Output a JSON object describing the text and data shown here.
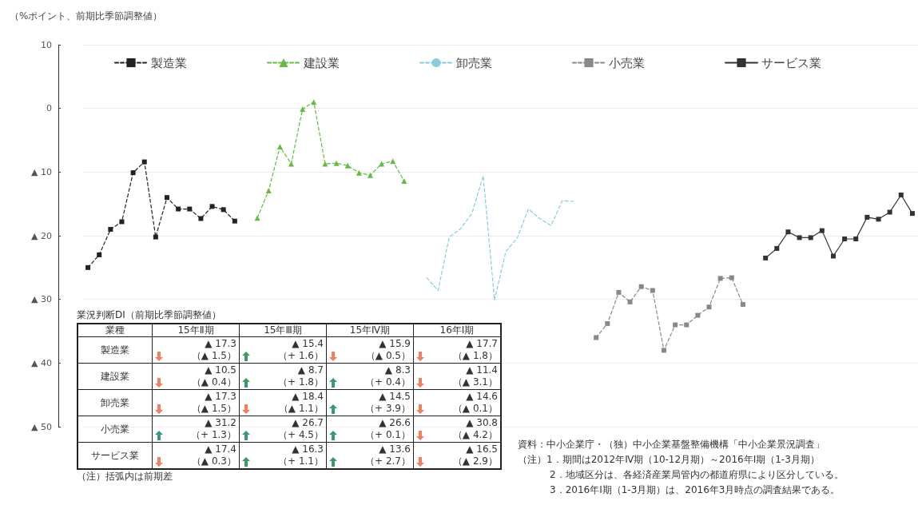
{
  "chart_data": [
    {
      "type": "line",
      "ylabel": "（%ポイント、前期比季節調整値）",
      "categories": [
        null,
        null,
        null,
        null,
        null,
        null,
        null,
        null,
        null,
        null,
        null,
        null,
        null,
        null,
        null,
        null,
        null,
        null,
        null,
        null,
        null,
        null,
        null,
        null,
        null,
        null,
        null,
        null,
        null,
        null,
        null,
        null,
        null,
        null,
        null,
        null,
        null,
        null,
        null,
        null,
        null,
        null,
        null,
        null,
        null,
        null,
        null,
        null,
        null,
        null,
        null,
        null,
        null,
        null,
        null,
        null,
        null,
        null,
        null,
        null,
        null,
        null,
        null,
        null,
        null,
        null,
        null,
        null,
        null,
        null,
        null,
        null,
        null,
        null
      ],
      "series": [
        {
          "name": "製造業",
          "color": "#222222",
          "marker": "square",
          "line_style": "dashed",
          "values": [
            -25.0,
            -23.0,
            -19.0,
            -17.8,
            -10.1,
            -8.4,
            -20.2,
            -14.0,
            -15.8,
            -15.8,
            -17.3,
            -15.4,
            -15.9,
            -17.7,
            null,
            null,
            null,
            null,
            null,
            null,
            null,
            null,
            null,
            null,
            null,
            null,
            null,
            null,
            null,
            null,
            null,
            null,
            null,
            null,
            null,
            null,
            null,
            null,
            null,
            null,
            null,
            null,
            null,
            null,
            null,
            null,
            null,
            null,
            null,
            null,
            null,
            null,
            null,
            null,
            null,
            null,
            null,
            null,
            null,
            null,
            null,
            null,
            null,
            null,
            null,
            null,
            null,
            null,
            null,
            null,
            null,
            null,
            null,
            null
          ]
        },
        {
          "name": "建設業",
          "color": "#66bb44",
          "marker": "triangle",
          "line_style": "dashed",
          "values": [
            null,
            null,
            null,
            null,
            null,
            null,
            null,
            null,
            null,
            null,
            null,
            null,
            null,
            null,
            null,
            -17.2,
            -12.9,
            -6.0,
            -8.7,
            -0.1,
            1.0,
            -8.7,
            -8.6,
            -9.0,
            -10.1,
            -10.5,
            -8.7,
            -8.3,
            -11.4,
            null,
            null,
            null,
            null,
            null,
            null,
            null,
            null,
            null,
            null,
            null,
            null,
            null,
            null,
            null,
            null,
            null,
            null,
            null,
            null,
            null,
            null,
            null,
            null,
            null,
            null,
            null,
            null,
            null,
            null,
            null,
            null,
            null,
            null,
            null,
            null,
            null,
            null,
            null,
            null,
            null,
            null,
            null,
            null,
            null
          ]
        },
        {
          "name": "卸売業",
          "color": "#88ccdd",
          "marker": "none",
          "line_style": "dashed",
          "values": [
            null,
            null,
            null,
            null,
            null,
            null,
            null,
            null,
            null,
            null,
            null,
            null,
            null,
            null,
            null,
            null,
            null,
            null,
            null,
            null,
            null,
            null,
            null,
            null,
            null,
            null,
            null,
            null,
            null,
            null,
            -26.6,
            -28.6,
            -20.2,
            -18.9,
            -16.5,
            -10.6,
            -30.1,
            -22.5,
            -20.4,
            -15.8,
            -17.3,
            -18.4,
            -14.5,
            -14.6,
            null,
            null,
            null,
            null,
            null,
            null,
            null,
            null,
            null,
            null,
            null,
            null,
            null,
            null,
            null,
            null,
            null,
            null,
            null,
            null,
            null,
            null,
            null,
            null,
            null,
            null,
            null,
            null,
            null,
            null
          ]
        },
        {
          "name": "小売業",
          "color": "#888888",
          "marker": "square",
          "line_style": "dashed",
          "values": [
            null,
            null,
            null,
            null,
            null,
            null,
            null,
            null,
            null,
            null,
            null,
            null,
            null,
            null,
            null,
            null,
            null,
            null,
            null,
            null,
            null,
            null,
            null,
            null,
            null,
            null,
            null,
            null,
            null,
            null,
            null,
            null,
            null,
            null,
            null,
            null,
            null,
            null,
            null,
            null,
            null,
            null,
            null,
            null,
            null,
            -36.0,
            -33.8,
            -28.9,
            -30.4,
            -28.0,
            -28.6,
            -38.0,
            -34.0,
            -34.0,
            -32.5,
            -31.2,
            -26.7,
            -26.6,
            -30.8,
            null,
            null,
            null,
            null,
            null,
            null,
            null,
            null,
            null,
            null,
            null,
            null,
            null,
            null,
            null
          ]
        },
        {
          "name": "サービス業",
          "color": "#333333",
          "marker": "square",
          "line_style": "solid",
          "values": [
            null,
            null,
            null,
            null,
            null,
            null,
            null,
            null,
            null,
            null,
            null,
            null,
            null,
            null,
            null,
            null,
            null,
            null,
            null,
            null,
            null,
            null,
            null,
            null,
            null,
            null,
            null,
            null,
            null,
            null,
            null,
            null,
            null,
            null,
            null,
            null,
            null,
            null,
            null,
            null,
            null,
            null,
            null,
            null,
            null,
            null,
            null,
            null,
            null,
            null,
            null,
            null,
            null,
            null,
            null,
            null,
            null,
            null,
            null,
            null,
            -23.5,
            -22.0,
            -19.4,
            -20.3,
            -20.3,
            -19.2,
            -23.2,
            -20.5,
            -20.5,
            -17.1,
            -17.4,
            -16.3,
            -13.6,
            -16.5
          ]
        }
      ],
      "ylim": [
        -50,
        10
      ],
      "yticks": [
        10,
        0,
        {
          "value": -10,
          "label": "▲ 10"
        },
        {
          "value": -20,
          "label": "▲ 20"
        },
        {
          "value": -30,
          "label": "▲ 30"
        },
        {
          "value": -40,
          "label": "▲ 40"
        },
        {
          "value": -50,
          "label": "▲ 50"
        }
      ],
      "grid": "y",
      "legend": "top",
      "tick_labels": "y",
      "annotations": [
        "資料：中小企業庁・（独）中小企業基盤整備機構「中小企業景況調査」",
        "（注）1．期間は2012年Ⅳ期（10-12月期）～2016年Ⅰ期（1-3月期）",
        "2．地域区分は、各経済産業局管内の都道府県により区分している。",
        "3．2016年Ⅰ期（1-3月期）は、2016年3月時点の調査結果である。"
      ]
    },
    {
      "type": "other",
      "title": "業況判断DI（前期比季節調整値）",
      "categories": [
        "業種",
        "15年Ⅱ期",
        "15年Ⅲ期",
        "15年Ⅳ期",
        "16年Ⅰ期"
      ],
      "y_categories": [
        "製造業",
        "建設業",
        "卸売業",
        "小売業",
        "サービス業"
      ],
      "cell_labels": [
        [
          [
            "▲ 17.3",
            "（▲ 1.5）"
          ],
          [
            "▲ 15.4",
            "（+ 1.6）"
          ],
          [
            "▲ 15.9",
            "（▲ 0.5）"
          ],
          [
            "▲ 17.7",
            "（▲ 1.8）"
          ]
        ],
        [
          [
            "▲ 10.5",
            "（▲ 0.4）"
          ],
          [
            "▲ 8.7",
            "（+ 1.8）"
          ],
          [
            "▲ 8.3",
            "（+ 0.4）"
          ],
          [
            "▲ 11.4",
            "（▲ 3.1）"
          ]
        ],
        [
          [
            "▲ 17.3",
            "（▲ 1.5）"
          ],
          [
            "▲ 18.4",
            "（▲ 1.1）"
          ],
          [
            "▲ 14.5",
            "（+ 3.9）"
          ],
          [
            "▲ 14.6",
            "（▲ 0.1）"
          ]
        ],
        [
          [
            "▲ 31.2",
            "（+ 1.3）"
          ],
          [
            "▲ 26.7",
            "（+ 4.5）"
          ],
          [
            "▲ 26.6",
            "（+ 0.1）"
          ],
          [
            "▲ 30.8",
            "（▲ 4.2）"
          ]
        ],
        [
          [
            "▲ 17.4",
            "（▲ 0.3）"
          ],
          [
            "▲ 16.3",
            "（+ 1.1）"
          ],
          [
            "▲ 13.6",
            "（+ 2.7）"
          ],
          [
            "▲ 16.5",
            "（▲ 2.9）"
          ]
        ]
      ],
      "annotations": [
        "（注）括弧内は前期差"
      ]
    }
  ]
}
